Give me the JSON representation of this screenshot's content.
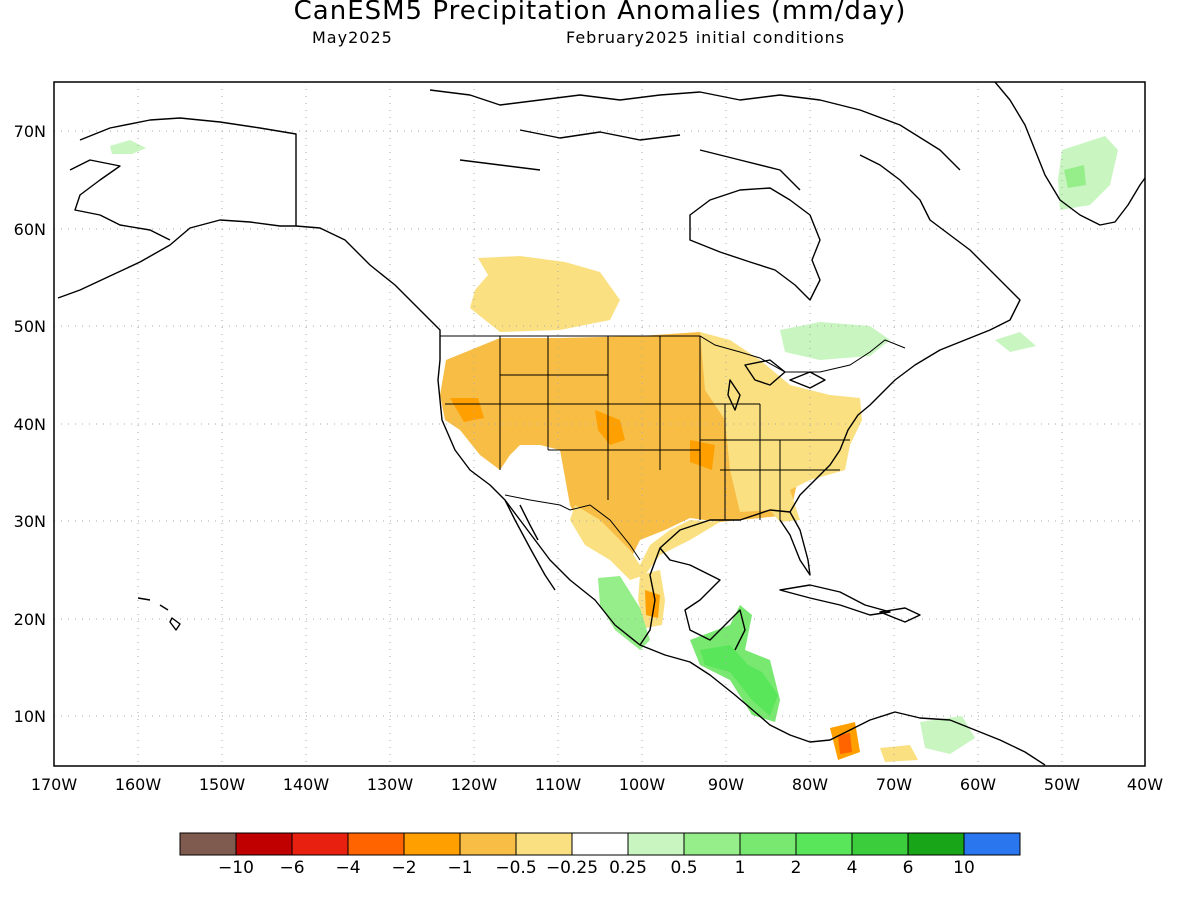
{
  "title": "CanESM5 Precipitation Anomalies (mm/day)",
  "valid_month": "May2025",
  "initial_conditions": "February2025 initial conditions",
  "map": {
    "region": "North America",
    "projection": "cylindrical equidistant",
    "lon_range": [
      "170W",
      "40W"
    ],
    "lat_range": [
      "5N",
      "75N"
    ],
    "grid_lines": "dotted gray",
    "lon_labels": [
      "170W",
      "160W",
      "150W",
      "140W",
      "130W",
      "120W",
      "110W",
      "100W",
      "90W",
      "80W",
      "70W",
      "60W",
      "50W",
      "40W"
    ],
    "lat_labels": [
      "70N",
      "60N",
      "50N",
      "40N",
      "30N",
      "20N",
      "10N"
    ]
  },
  "colorbar": {
    "colors": [
      "#7f5a4e",
      "#c00000",
      "#e8200f",
      "#ff6400",
      "#ff9f00",
      "#f8bd45",
      "#fae080",
      "#ffffff",
      "#c8f5c0",
      "#96ee8a",
      "#78e870",
      "#5ae65a",
      "#3ccd3c",
      "#18a518",
      "#2a76ee"
    ],
    "labels": [
      "−10",
      "−6",
      "−4",
      "−2",
      "−1",
      "−0.5",
      "−0.25",
      "0.25",
      "0.5",
      "1",
      "2",
      "4",
      "6",
      "10"
    ]
  },
  "anomaly_regions": [
    {
      "name": "Central Canadian Prairies",
      "color": "#fae080",
      "value": "-0.25 to -0.5"
    },
    {
      "name": "Western & Central United States",
      "color": "#f8bd45",
      "value": "-0.5 to -1"
    },
    {
      "name": "Southern Great Plains core",
      "color": "#ff9f00",
      "value": "-1 to -2"
    },
    {
      "name": "Southeastern United States",
      "color": "#f8bd45",
      "value": "-0.5 to -1"
    },
    {
      "name": "Northeastern United States",
      "color": "#fae080",
      "value": "-0.25 to -0.5"
    },
    {
      "name": "Texas & Northern Mexico",
      "color": "#fae080",
      "value": "-0.25 to -0.5"
    },
    {
      "name": "Eastern Mexico coast",
      "color": "#ff9f00",
      "value": "-1 to -2"
    },
    {
      "name": "Northern Colombia",
      "color": "#ff6400",
      "value": "-2 to -4"
    },
    {
      "name": "Southwestern Mexico",
      "color": "#78e870",
      "value": "1 to 2"
    },
    {
      "name": "Central America",
      "color": "#5ae65a",
      "value": "2 to 4"
    },
    {
      "name": "Quebec",
      "color": "#c8f5c0",
      "value": "0.25 to 0.5"
    },
    {
      "name": "Labrador coast",
      "color": "#c8f5c0",
      "value": "0.25 to 0.5"
    },
    {
      "name": "Greenland",
      "color": "#96ee8a",
      "value": "0.5 to 1"
    },
    {
      "name": "Alaska north slope",
      "color": "#c8f5c0",
      "value": "0.25 to 0.5"
    },
    {
      "name": "Venezuela",
      "color": "#96ee8a",
      "value": "0.5 to 1"
    }
  ]
}
